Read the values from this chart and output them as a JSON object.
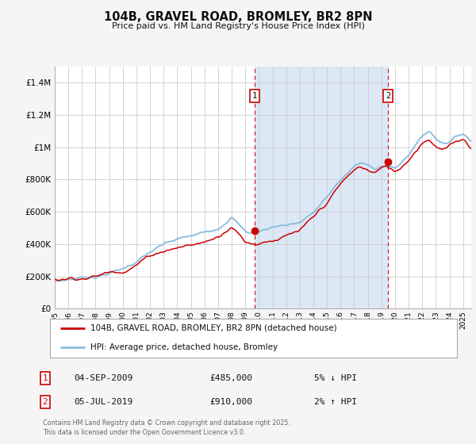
{
  "title": "104B, GRAVEL ROAD, BROMLEY, BR2 8PN",
  "subtitle": "Price paid vs. HM Land Registry's House Price Index (HPI)",
  "background_color": "#f5f5f5",
  "plot_bg_color": "#ffffff",
  "shaded_region_color": "#dce8f5",
  "grid_color": "#cccccc",
  "hpi_color": "#88bbdd",
  "price_color": "#cc0000",
  "ylim": [
    0,
    1500000
  ],
  "xlim_start": 1995.0,
  "xlim_end": 2025.6,
  "yticks": [
    0,
    200000,
    400000,
    600000,
    800000,
    1000000,
    1200000,
    1400000
  ],
  "ytick_labels": [
    "£0",
    "£200K",
    "£400K",
    "£600K",
    "£800K",
    "£1M",
    "£1.2M",
    "£1.4M"
  ],
  "xtick_years": [
    1995,
    1996,
    1997,
    1998,
    1999,
    2000,
    2001,
    2002,
    2003,
    2004,
    2005,
    2006,
    2007,
    2008,
    2009,
    2010,
    2011,
    2012,
    2013,
    2014,
    2015,
    2016,
    2017,
    2018,
    2019,
    2020,
    2021,
    2022,
    2023,
    2024,
    2025
  ],
  "sale1_x": 2009.67,
  "sale1_y": 485000,
  "sale1_label": "1",
  "sale1_date": "04-SEP-2009",
  "sale1_price": "£485,000",
  "sale1_hpi": "5% ↓ HPI",
  "sale2_x": 2019.5,
  "sale2_y": 910000,
  "sale2_label": "2",
  "sale2_date": "05-JUL-2019",
  "sale2_price": "£910,000",
  "sale2_hpi": "2% ↑ HPI",
  "legend_label1": "104B, GRAVEL ROAD, BROMLEY, BR2 8PN (detached house)",
  "legend_label2": "HPI: Average price, detached house, Bromley",
  "footer": "Contains HM Land Registry data © Crown copyright and database right 2025.\nThis data is licensed under the Open Government Licence v3.0."
}
